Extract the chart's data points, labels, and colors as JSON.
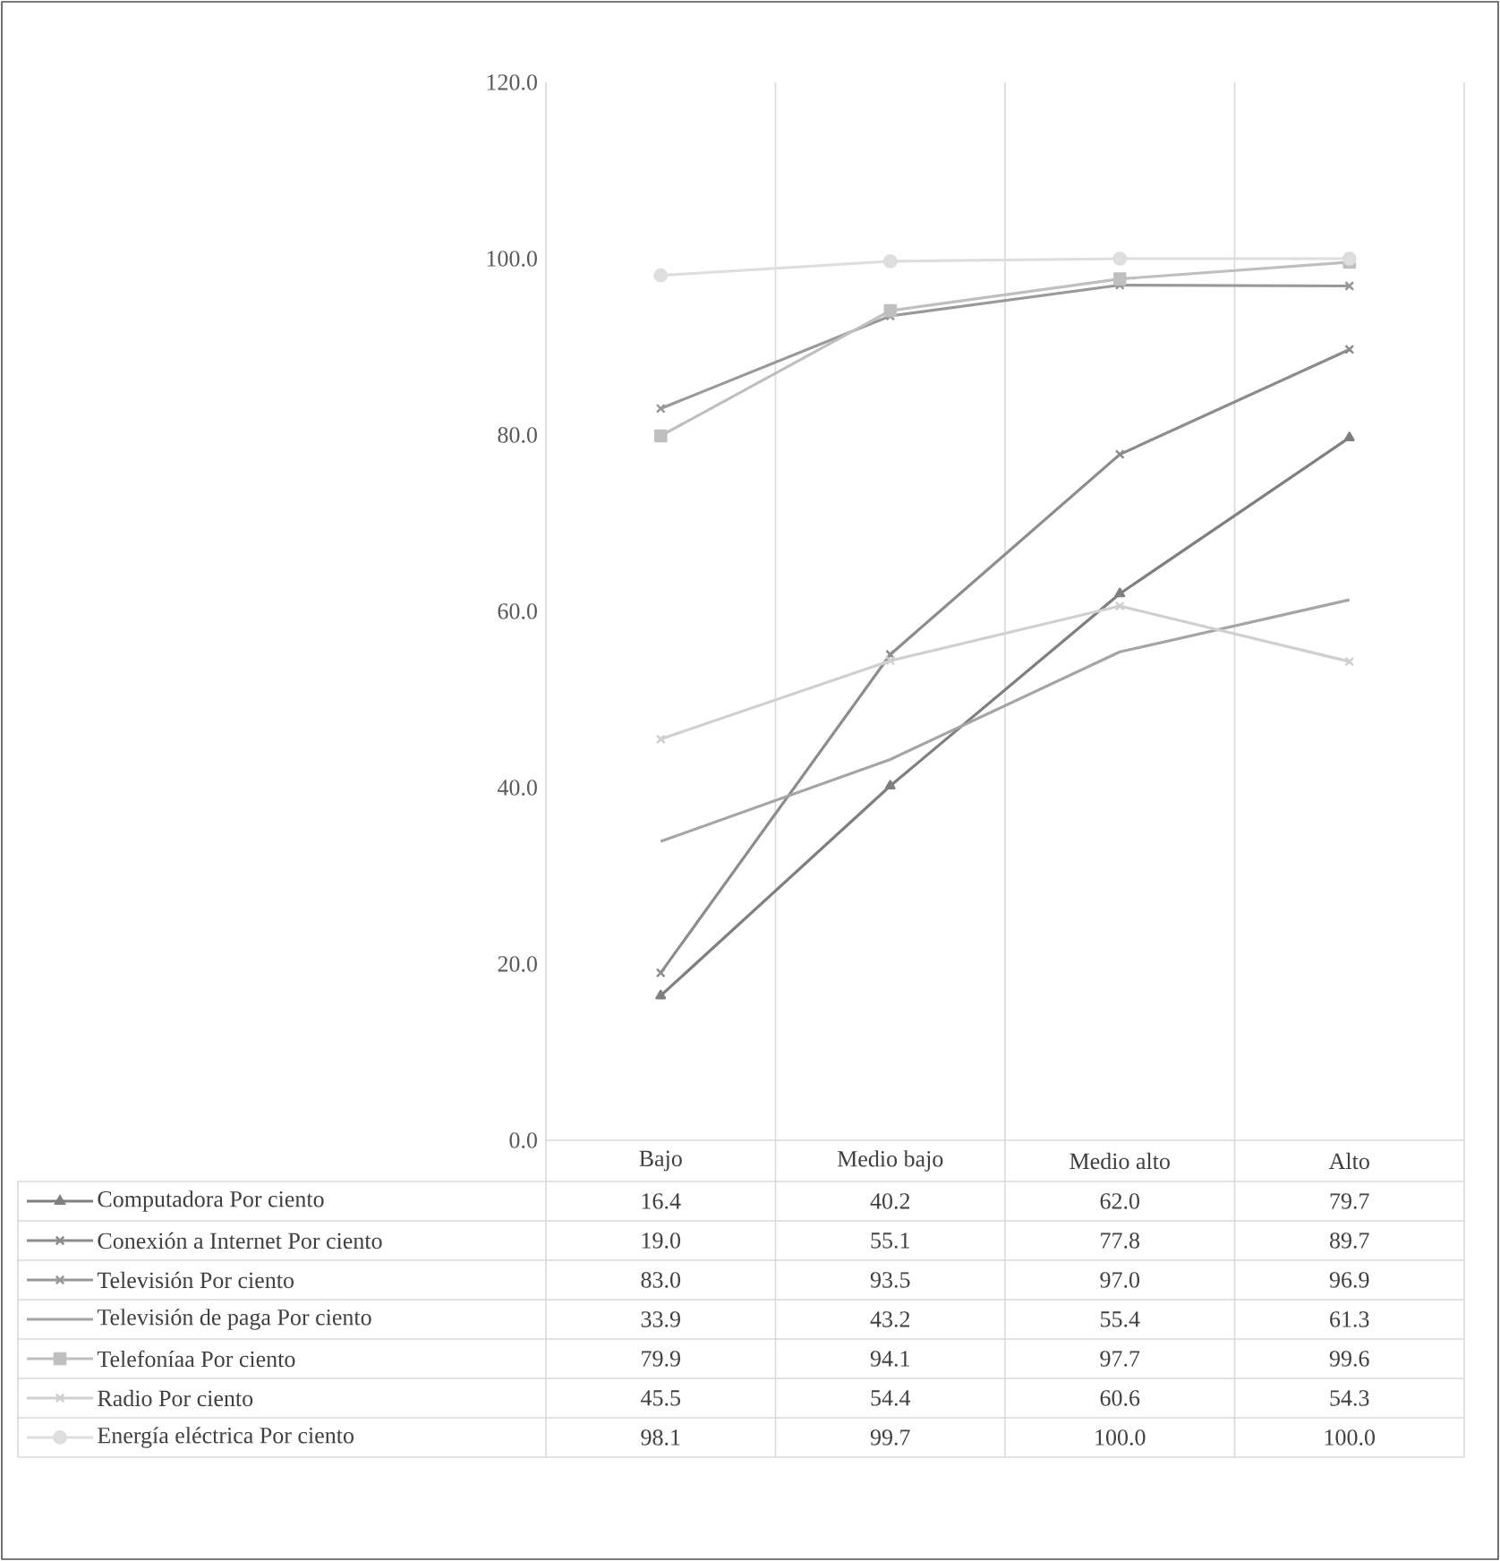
{
  "chart_data": {
    "type": "line",
    "categories": [
      "Bajo",
      "Medio bajo",
      "Medio alto",
      "Alto"
    ],
    "series": [
      {
        "name": "Computadora Por ciento",
        "color": "#7f7f7f",
        "marker": "triangle",
        "values": [
          16.4,
          40.2,
          62.0,
          79.7
        ],
        "value_labels": [
          "16.4",
          "40.2",
          "62.0",
          "79.7"
        ]
      },
      {
        "name": "Conexión a Internet Por ciento",
        "color": "#8c8c8c",
        "marker": "cross",
        "values": [
          19.0,
          55.1,
          77.8,
          89.7
        ],
        "value_labels": [
          "19.0",
          "55.1",
          "77.8",
          "89.7"
        ]
      },
      {
        "name": "Televisión Por ciento",
        "color": "#999999",
        "marker": "cross",
        "values": [
          83.0,
          93.5,
          97.0,
          96.9
        ],
        "value_labels": [
          "83.0",
          "93.5",
          "97.0",
          "96.9"
        ]
      },
      {
        "name": "Televisión de paga Por ciento",
        "color": "#a5a5a5",
        "marker": "none",
        "values": [
          33.9,
          43.2,
          55.4,
          61.3
        ],
        "value_labels": [
          "33.9",
          "43.2",
          "55.4",
          "61.3"
        ]
      },
      {
        "name": "Telefoníaa Por ciento",
        "color": "#bfbfbf",
        "marker": "square",
        "values": [
          79.9,
          94.1,
          97.7,
          99.6
        ],
        "value_labels": [
          "79.9",
          "94.1",
          "97.7",
          "99.6"
        ]
      },
      {
        "name": "Radio Por ciento",
        "color": "#d0d0d0",
        "marker": "cross",
        "values": [
          45.5,
          54.4,
          60.6,
          54.3
        ],
        "value_labels": [
          "45.5",
          "54.4",
          "60.6",
          "54.3"
        ]
      },
      {
        "name": "Energía eléctrica Por ciento",
        "color": "#dedede",
        "marker": "circle",
        "values": [
          98.1,
          99.7,
          100.0,
          100.0
        ],
        "value_labels": [
          "98.1",
          "99.7",
          "100.0",
          "100.0"
        ]
      }
    ],
    "ylim": [
      0,
      120
    ],
    "yticks": [
      {
        "value": 0,
        "label": "0.0"
      },
      {
        "value": 20,
        "label": "20.0"
      },
      {
        "value": 40,
        "label": "40.0"
      },
      {
        "value": 60,
        "label": "60.0"
      },
      {
        "value": 80,
        "label": "80.0"
      },
      {
        "value": 100,
        "label": "100.0"
      },
      {
        "value": 120,
        "label": "120.0"
      }
    ],
    "grid": "x",
    "legend": "bottom",
    "line_style": "solid"
  }
}
